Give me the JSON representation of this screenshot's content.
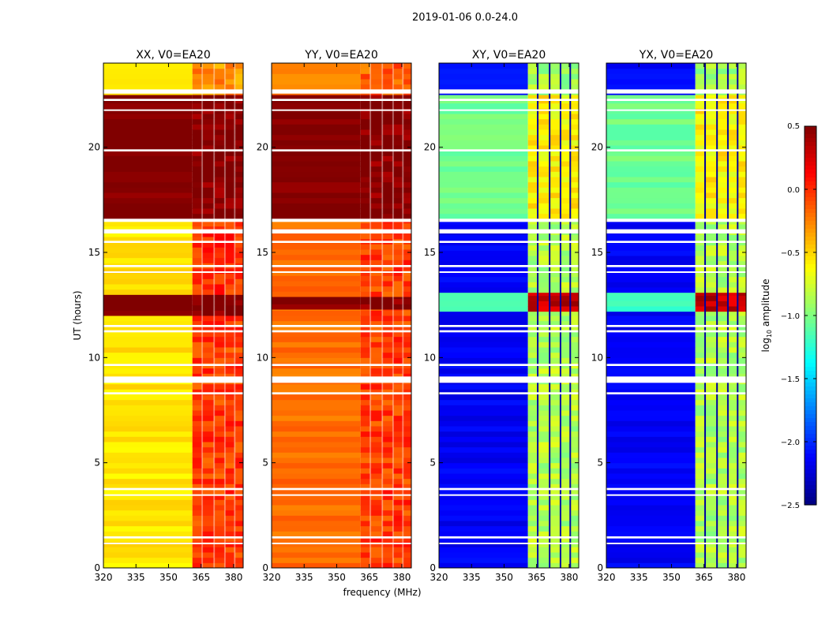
{
  "chart_data": {
    "type": "heatmap",
    "title": "2019-01-06 0.0-24.0",
    "xlabel": "frequency (MHz)",
    "ylabel": "UT (hours)",
    "xlim": [
      320,
      384.4
    ],
    "ylim": [
      0,
      24
    ],
    "xticks": [
      320,
      335,
      350,
      365,
      380
    ],
    "yticks": [
      0,
      5,
      10,
      15,
      20
    ],
    "colorbar": {
      "label_main": "log",
      "label_sub": "10",
      "label_tail": " amplitude",
      "range": [
        -2.5,
        0.5
      ],
      "ticks": [
        "0.5",
        "0.0",
        "−0.5",
        "−1.0",
        "−1.5",
        "−2.0",
        "−2.5"
      ],
      "tick_values": [
        0.5,
        0,
        -0.5,
        -1,
        -1.5,
        -2,
        -2.5
      ],
      "colormap": "jet"
    },
    "band": {
      "range": [
        361,
        384.4
      ],
      "channel_edges": [
        365.5,
        371,
        376,
        380.5
      ]
    },
    "flagged_hours": [
      [
        22.55,
        22.75
      ],
      [
        22.2,
        22.3
      ],
      [
        21.75,
        21.8
      ],
      [
        19.8,
        19.9
      ],
      [
        16.45,
        16.6
      ],
      [
        15.9,
        16.1
      ],
      [
        15.45,
        15.55
      ],
      [
        14.3,
        14.4
      ],
      [
        14.05,
        14.1
      ],
      [
        11.45,
        11.55
      ],
      [
        11.2,
        11.3
      ],
      [
        9.6,
        9.7
      ],
      [
        8.8,
        9.1
      ],
      [
        8.25,
        8.35
      ],
      [
        3.7,
        3.8
      ],
      [
        3.45,
        3.5
      ],
      [
        1.4,
        1.5
      ],
      [
        1.15,
        1.2
      ]
    ],
    "panels": [
      {
        "title": "XX, V0=EA20",
        "segments": [
          [
            0,
            12,
            -0.55,
            -0.05
          ],
          [
            12,
            13,
            0.5,
            0.5
          ],
          [
            13,
            16.6,
            -0.55,
            0.0
          ],
          [
            16.6,
            22.5,
            0.5,
            0.5
          ],
          [
            22.5,
            24,
            -0.6,
            -0.3
          ]
        ]
      },
      {
        "title": "YY, V0=EA20",
        "segments": [
          [
            0,
            12.3,
            -0.2,
            -0.05
          ],
          [
            12.3,
            12.9,
            0.5,
            0.5
          ],
          [
            12.9,
            16.6,
            -0.2,
            -0.05
          ],
          [
            16.6,
            22.5,
            0.5,
            0.5
          ],
          [
            22.5,
            24,
            -0.25,
            -0.15
          ]
        ]
      },
      {
        "title": "XY, V0=EA20",
        "segments": [
          [
            0,
            12.2,
            -2.15,
            -0.85
          ],
          [
            12.2,
            13.1,
            -1.2,
            0.3
          ],
          [
            13.1,
            16.6,
            -2.15,
            -0.85
          ],
          [
            16.6,
            22.5,
            -1.05,
            -0.6
          ],
          [
            22.5,
            24,
            -2.1,
            -0.9
          ]
        ]
      },
      {
        "title": "YX, V0=EA20",
        "segments": [
          [
            0,
            12.2,
            -2.15,
            -0.85
          ],
          [
            12.2,
            13.1,
            -1.2,
            0.3
          ],
          [
            13.1,
            16.6,
            -2.15,
            -0.85
          ],
          [
            16.6,
            22.5,
            -1.05,
            -0.6
          ],
          [
            22.5,
            24,
            -2.1,
            -0.9
          ]
        ]
      }
    ]
  }
}
